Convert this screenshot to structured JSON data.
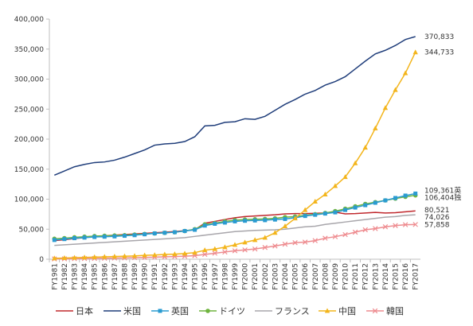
{
  "chart_data": {
    "type": "line",
    "title": "",
    "xlabel": "",
    "ylabel": "",
    "ylim": [
      0,
      400000
    ],
    "yticks": [
      0,
      50000,
      100000,
      150000,
      200000,
      250000,
      300000,
      350000,
      400000
    ],
    "ytick_labels": [
      "0",
      "50,000",
      "100,000",
      "150,000",
      "200,000",
      "250,000",
      "300,000",
      "350,000",
      "400,000"
    ],
    "grid": false,
    "legend_position": "bottom",
    "x": [
      "FY1981",
      "FY1982",
      "FY1983",
      "FY1984",
      "FY1985",
      "FY1986",
      "FY1987",
      "FY1988",
      "FY1989",
      "FY1990",
      "FY1991",
      "FY1992",
      "FY1993",
      "FY1994",
      "FY1995",
      "FY1996",
      "FY1997",
      "FY1998",
      "FY1999",
      "FY2000",
      "FY2001",
      "FY2002",
      "FY2003",
      "FY2004",
      "FY2005",
      "FY2006",
      "FY2007",
      "FY2008",
      "FY2009",
      "FY2010",
      "FY2011",
      "FY2012",
      "FY2013",
      "FY2014",
      "FY2015",
      "FY2016",
      "FY2017"
    ],
    "series": [
      {
        "name": "日本",
        "color": "#c0282d",
        "marker": "none",
        "values": [
          31000,
          32500,
          34500,
          36000,
          38000,
          39000,
          40000,
          41000,
          42000,
          43000,
          44000,
          45000,
          46000,
          47500,
          49000,
          60000,
          63000,
          66000,
          69000,
          71000,
          72000,
          73000,
          74000,
          75500,
          76000,
          76000,
          76500,
          77000,
          78500,
          75500,
          76000,
          77000,
          78000,
          77000,
          77500,
          79000,
          80521
        ]
      },
      {
        "name": "米国",
        "color": "#1f3d7a",
        "marker": "none",
        "values": [
          140000,
          147000,
          154000,
          158000,
          161000,
          162000,
          165000,
          170000,
          176000,
          182000,
          190000,
          192000,
          193000,
          196000,
          204000,
          222000,
          223000,
          228000,
          229000,
          234000,
          233000,
          238000,
          248000,
          258000,
          266000,
          275000,
          281000,
          290000,
          296000,
          304000,
          317000,
          330000,
          342000,
          348000,
          356000,
          366000,
          370833
        ]
      },
      {
        "name": "英国",
        "color": "#2a9bd1",
        "marker": "square",
        "values": [
          32000,
          33500,
          35000,
          36000,
          37000,
          37500,
          38000,
          39000,
          40000,
          41500,
          43000,
          44000,
          45000,
          47000,
          49000,
          56000,
          59000,
          61000,
          63000,
          64000,
          64500,
          65000,
          66000,
          67000,
          69000,
          72000,
          74000,
          76000,
          78000,
          82000,
          86000,
          90000,
          94000,
          98000,
          102000,
          106000,
          109361
        ]
      },
      {
        "name": "ドイツ",
        "color": "#6fb43f",
        "marker": "circle",
        "values": [
          34000,
          35000,
          36500,
          37500,
          38500,
          39000,
          39500,
          40000,
          41000,
          42000,
          43000,
          44000,
          45000,
          47000,
          50000,
          58000,
          60000,
          63000,
          65000,
          66000,
          66500,
          67000,
          68000,
          70000,
          71000,
          73000,
          75000,
          77000,
          80000,
          84000,
          88000,
          92000,
          95000,
          98000,
          101000,
          104000,
          106404
        ]
      },
      {
        "name": "フランス",
        "color": "#a8a6ab",
        "marker": "none",
        "values": [
          23000,
          24000,
          25000,
          26000,
          27000,
          28000,
          29000,
          30000,
          31000,
          32000,
          33000,
          34000,
          35000,
          36000,
          38000,
          40000,
          42000,
          44000,
          46000,
          47000,
          48000,
          48500,
          49000,
          50000,
          52000,
          54000,
          55000,
          58000,
          60000,
          62000,
          64000,
          66000,
          68000,
          70000,
          71000,
          73000,
          74026
        ]
      },
      {
        "name": "中国",
        "color": "#f3b51c",
        "marker": "triangle",
        "values": [
          1500,
          2000,
          2500,
          3000,
          3500,
          4000,
          4500,
          5000,
          5500,
          6500,
          7000,
          8000,
          8500,
          9500,
          11000,
          15000,
          17000,
          20000,
          24000,
          28000,
          32000,
          36000,
          44000,
          55000,
          68000,
          82000,
          96000,
          108000,
          122000,
          137000,
          160000,
          186000,
          218000,
          252000,
          282000,
          310000,
          344733
        ]
      },
      {
        "name": "韓国",
        "color": "#ee8b8f",
        "marker": "cross",
        "values": [
          500,
          700,
          900,
          1100,
          1300,
          1600,
          1900,
          2200,
          2600,
          3000,
          3500,
          4000,
          4500,
          5000,
          6000,
          8000,
          10000,
          12000,
          14000,
          15500,
          17000,
          19500,
          22000,
          25000,
          27500,
          28500,
          31000,
          35000,
          37500,
          41000,
          45000,
          49000,
          51000,
          54000,
          56000,
          57500,
          57858
        ]
      }
    ],
    "end_labels": [
      {
        "series": "米国",
        "text": "370,833"
      },
      {
        "series": "中国",
        "text": "344,733"
      },
      {
        "series": "英国",
        "text": "109,361英"
      },
      {
        "series": "ドイツ",
        "text": "106,404独"
      },
      {
        "series": "日本",
        "text": "80,521"
      },
      {
        "series": "フランス",
        "text": "74,026"
      },
      {
        "series": "韓国",
        "text": "57,858"
      }
    ]
  }
}
